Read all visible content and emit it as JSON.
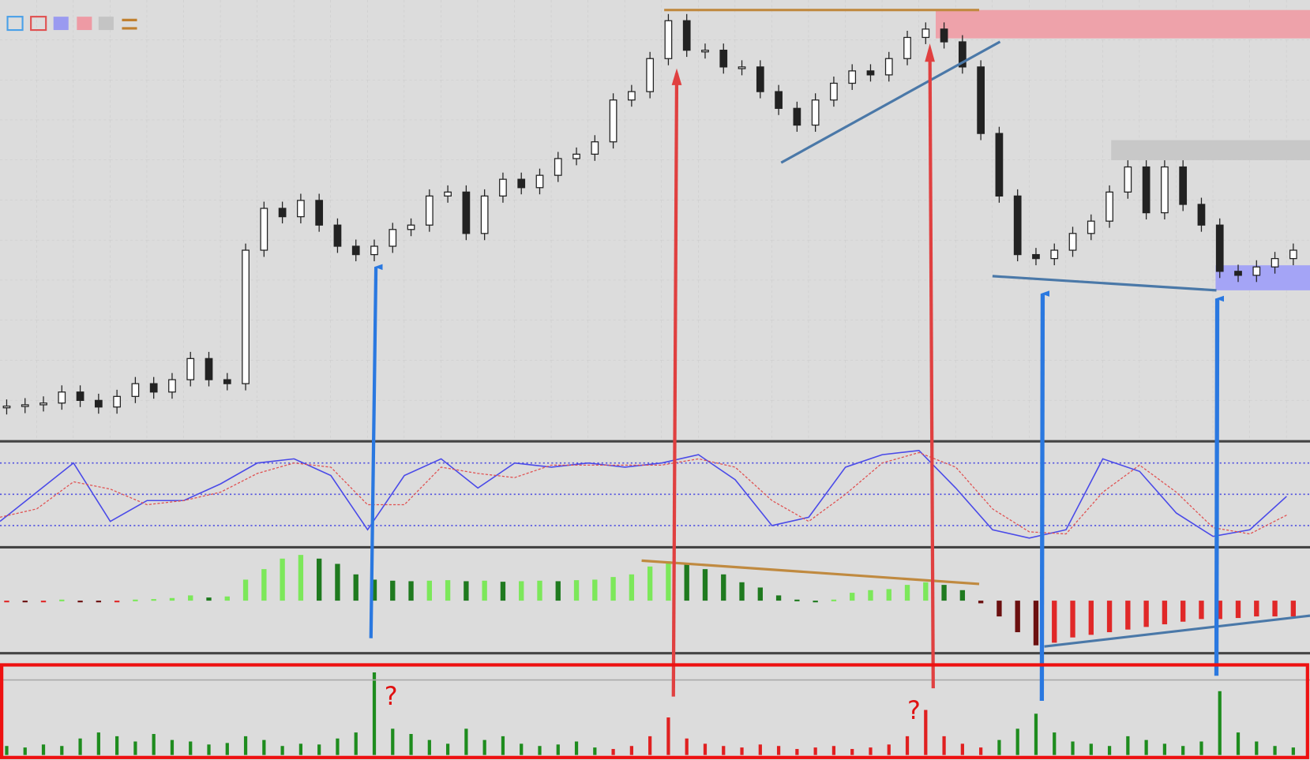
{
  "chart_data": [
    {
      "type": "candlestick",
      "color_up": "#ffffff",
      "color_down": "#222222",
      "ylim": [
        0,
        100
      ],
      "values": [
        7.8,
        8.1,
        8.5,
        11.0,
        9.1,
        7.6,
        10.0,
        12.9,
        11.0,
        13.8,
        18.6,
        13.8,
        12.9,
        43.2,
        52.7,
        50.8,
        54.5,
        48.9,
        44.1,
        42.2,
        44.1,
        47.9,
        48.9,
        55.5,
        56.4,
        47.0,
        55.5,
        59.3,
        57.4,
        60.2,
        64.0,
        65.0,
        67.8,
        77.3,
        79.2,
        86.7,
        95.3,
        88.6,
        88.6,
        84.8,
        84.8,
        79.2,
        75.4,
        71.6,
        77.3,
        81.1,
        83.9,
        83.0,
        86.7,
        91.5,
        93.4,
        90.5,
        84.8,
        69.7,
        55.5,
        42.2,
        41.3,
        43.2,
        47.0,
        49.8,
        56.4,
        62.1,
        51.7,
        62.1,
        53.6,
        48.9,
        38.4,
        37.5,
        39.4,
        41.3,
        43.2
      ]
    },
    {
      "type": "line",
      "ylim": [
        0,
        100
      ],
      "yticks": [
        20,
        50,
        80
      ],
      "grid": true,
      "series": [
        {
          "color": "#4a4ae8",
          "values": [
            24,
            52,
            80,
            24,
            44,
            44,
            60,
            80,
            84,
            68,
            16,
            68,
            84,
            56,
            80,
            76,
            80,
            76,
            80,
            88,
            64,
            20,
            28,
            76,
            88,
            92,
            56,
            16,
            8,
            16,
            84,
            72,
            32,
            9.6,
            16,
            48
          ]
        },
        {
          "color": "#e05050",
          "dashed": true,
          "values": [
            28,
            36,
            62,
            55,
            40,
            44,
            52,
            70,
            80,
            76,
            40,
            40,
            76,
            70,
            66,
            78,
            78,
            78,
            78,
            84,
            76,
            44,
            24,
            50,
            80,
            90,
            76,
            36,
            14,
            12,
            52,
            78,
            52,
            18,
            12,
            30
          ]
        }
      ]
    },
    {
      "type": "histogram",
      "ylim": [
        -1,
        1
      ],
      "colors": {
        "up_rising": "#7ce85a",
        "up_falling": "#1f7a1f",
        "down_falling": "#6b1010",
        "down_rising": "#e02828"
      },
      "values": [
        -0.02,
        -0.03,
        -0.02,
        0.02,
        -0.02,
        -0.03,
        -0.02,
        0.02,
        0.03,
        0.05,
        0.1,
        0.06,
        0.08,
        0.4,
        0.6,
        0.8,
        0.87,
        0.8,
        0.7,
        0.5,
        0.4,
        0.38,
        0.37,
        0.38,
        0.39,
        0.37,
        0.38,
        0.36,
        0.37,
        0.38,
        0.37,
        0.39,
        0.4,
        0.45,
        0.5,
        0.65,
        0.75,
        0.7,
        0.6,
        0.5,
        0.35,
        0.25,
        0.1,
        0.02,
        0,
        0.02,
        0.15,
        0.2,
        0.22,
        0.3,
        0.35,
        0.3,
        0.2,
        -0.05,
        -0.3,
        -0.6,
        -0.85,
        -0.8,
        -0.7,
        -0.65,
        -0.6,
        -0.55,
        -0.5,
        -0.45,
        -0.4,
        -0.35,
        -0.35,
        -0.33,
        -0.3,
        -0.3,
        -0.3
      ]
    },
    {
      "type": "bar",
      "ylim": [
        0,
        120
      ],
      "series": [
        {
          "color": "#1e8c1e",
          "values": [
            12,
            10,
            14,
            12,
            22,
            30,
            25,
            18,
            28,
            20,
            18,
            14,
            16,
            25,
            20,
            12,
            15,
            14,
            22,
            30,
            110,
            35,
            28,
            20,
            15,
            35,
            20,
            25,
            15,
            12,
            14,
            18,
            10,
            null,
            null,
            null,
            null,
            null,
            null,
            null,
            null,
            null,
            null,
            null,
            null,
            null,
            null,
            null,
            null,
            null,
            null,
            null,
            null,
            null,
            20,
            35,
            55,
            30,
            18,
            15,
            12,
            25,
            20,
            15,
            12,
            18,
            85,
            30,
            18,
            12,
            10
          ]
        },
        {
          "color": "#e02020",
          "values": [
            null,
            null,
            null,
            null,
            null,
            null,
            null,
            null,
            null,
            null,
            null,
            null,
            null,
            null,
            null,
            null,
            null,
            null,
            null,
            null,
            null,
            null,
            null,
            null,
            null,
            null,
            null,
            null,
            null,
            null,
            null,
            null,
            null,
            8,
            12,
            25,
            50,
            22,
            15,
            12,
            10,
            14,
            12,
            8,
            10,
            12,
            8,
            10,
            14,
            25,
            60,
            25,
            15,
            10,
            null,
            null,
            null,
            null,
            null,
            null,
            null,
            null,
            null,
            null,
            null,
            null,
            null,
            null,
            null,
            null,
            null
          ]
        }
      ]
    }
  ],
  "annotations": [
    "?",
    "?"
  ]
}
